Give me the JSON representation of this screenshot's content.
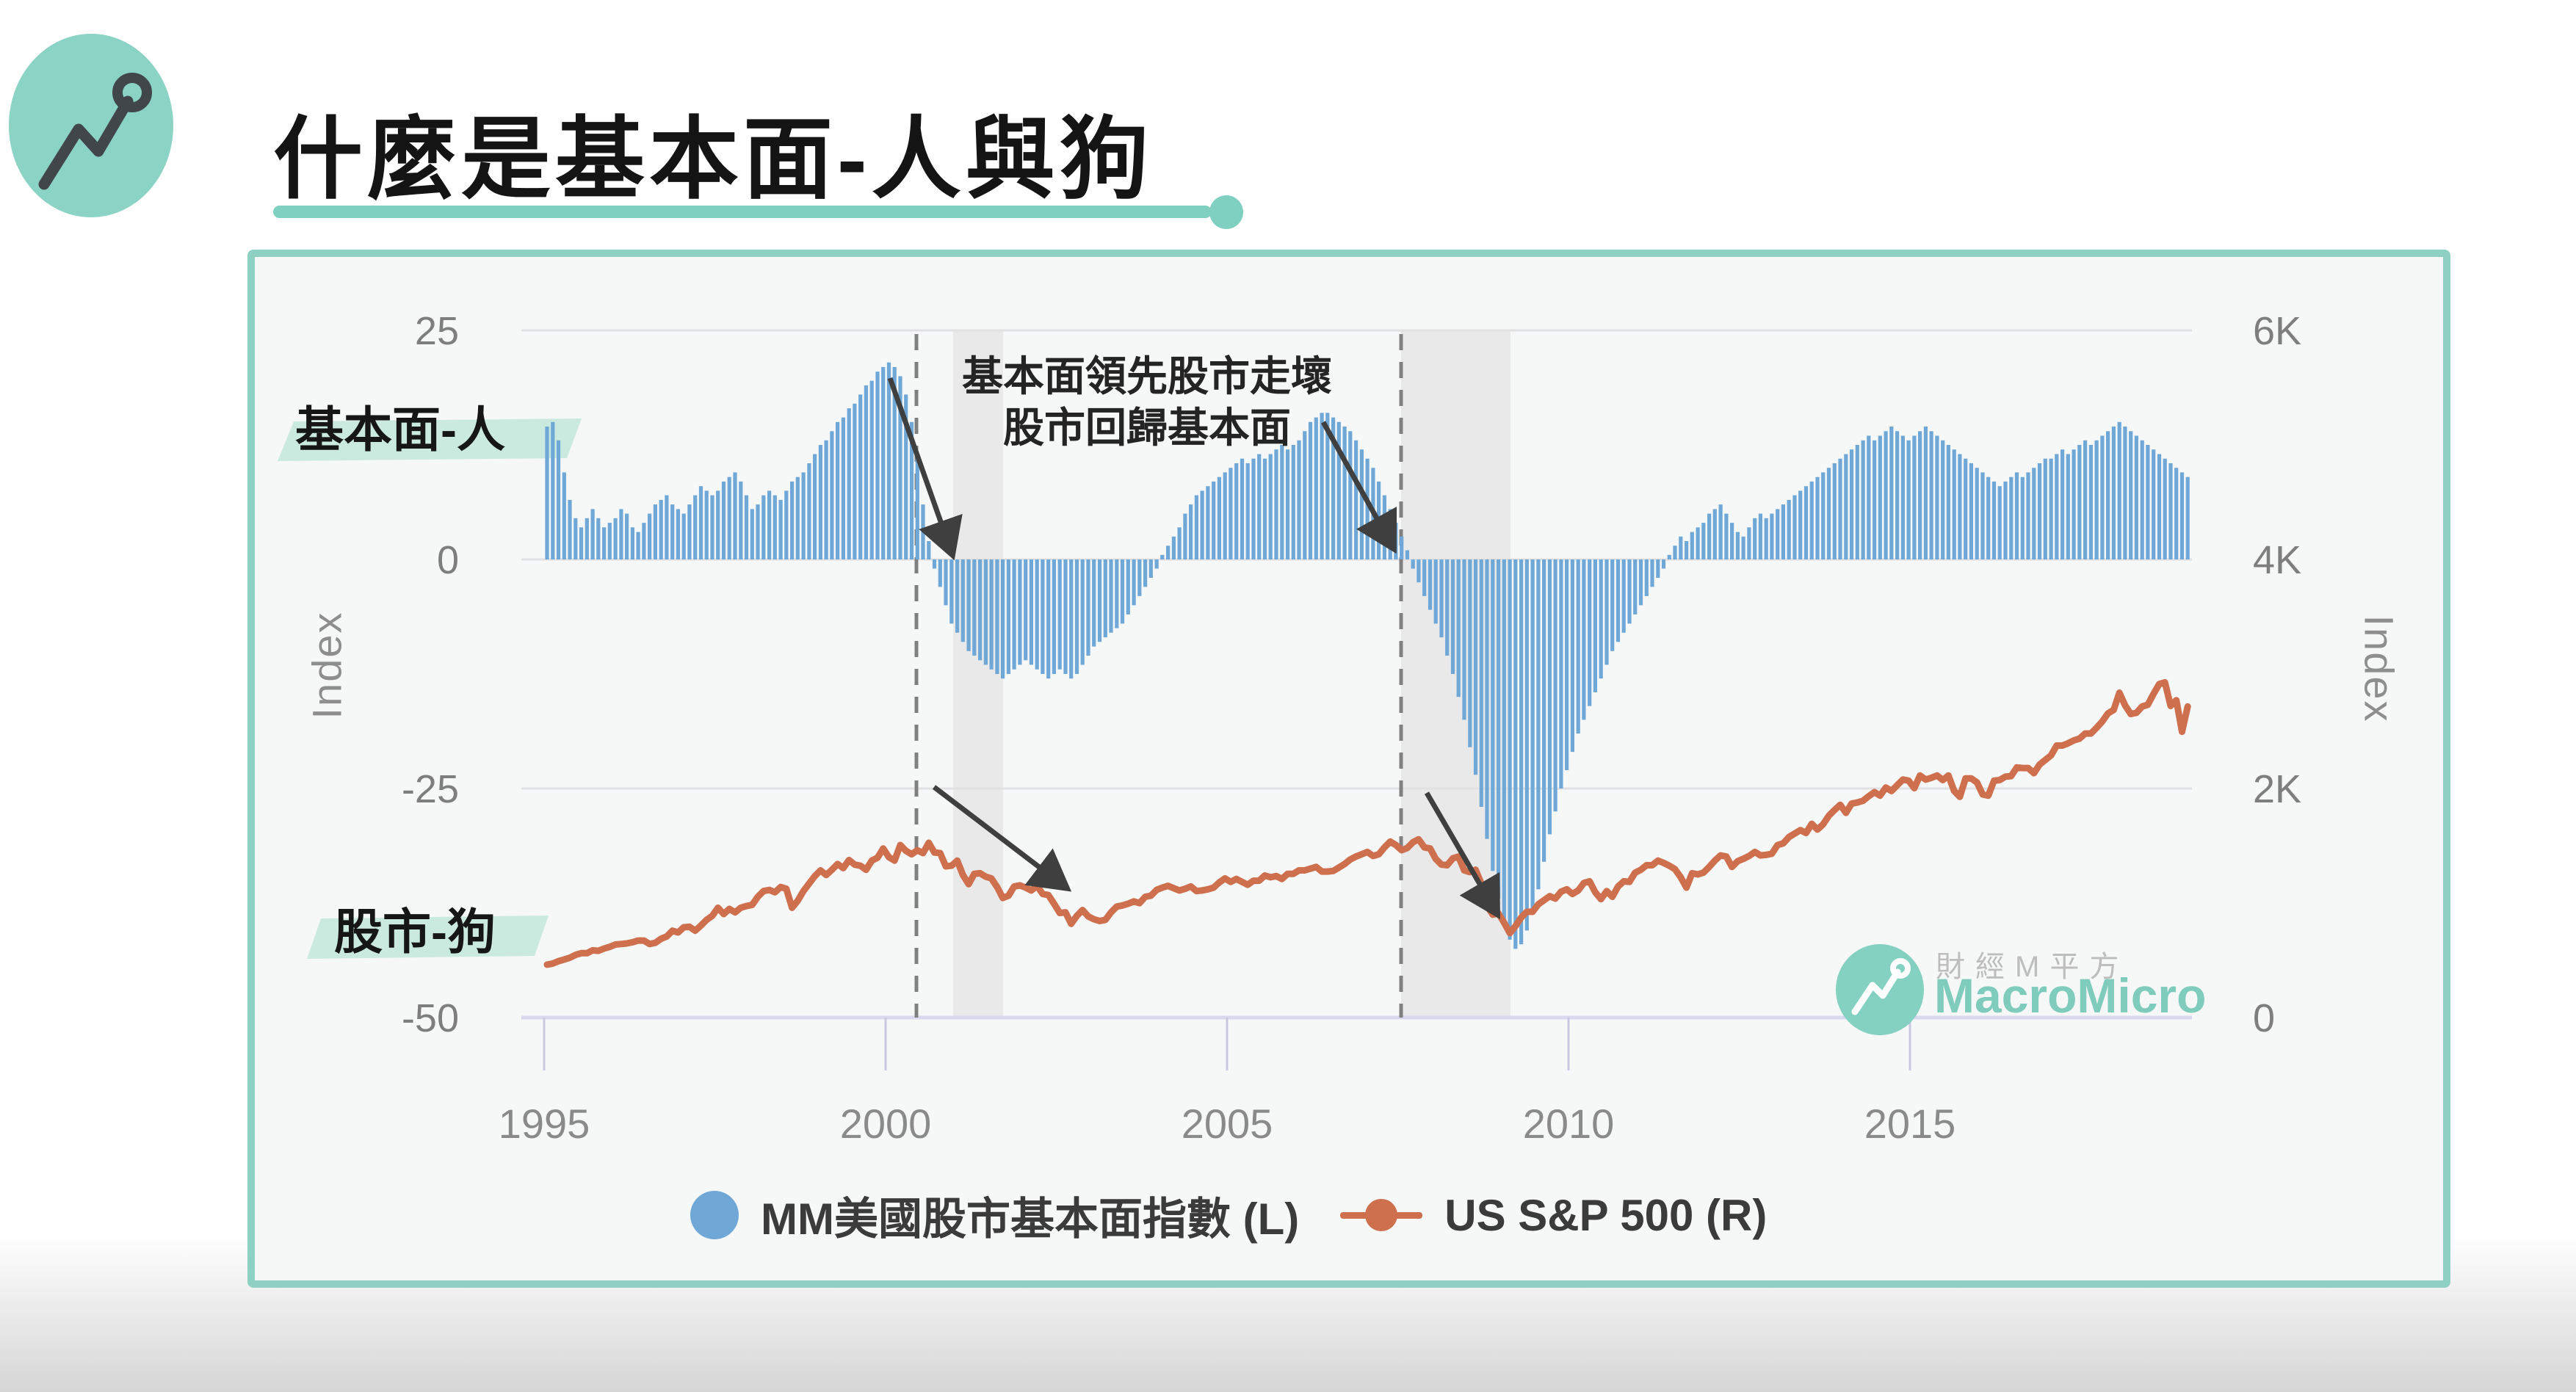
{
  "header": {
    "title": "什麼是基本面-人與狗",
    "brand_color": "#7fd0c0"
  },
  "chart": {
    "left_axis": {
      "label": "Index",
      "ticks": [
        "25",
        "0",
        "-25",
        "-50"
      ]
    },
    "right_axis": {
      "label": "Index",
      "ticks": [
        "6K",
        "4K",
        "2K",
        "0"
      ]
    },
    "x_axis": {
      "ticks": [
        "1995",
        "2000",
        "2005",
        "2010",
        "2015"
      ]
    },
    "annotation": {
      "line1": "基本面領先股市走壞",
      "line2": "股市回歸基本面",
      "human_label": "基本面-人",
      "dog_label": "股市-狗"
    },
    "legend": [
      {
        "label": "MM美國股市基本面指數 (L)",
        "color": "#6FA8D7",
        "marker": "circle"
      },
      {
        "label": "US S&P 500 (R)",
        "color": "#CE6F4D",
        "marker": "line-dot"
      }
    ],
    "watermark": {
      "line1": "財經M平方",
      "line2": "MacroMicro"
    }
  },
  "chart_data": {
    "type": "bar",
    "subtype": "bar+line dual-axis",
    "x_start_year": 1995,
    "x_start_month": 1,
    "frequency": "monthly",
    "xlabels": [
      1995,
      2000,
      2005,
      2010,
      2015
    ],
    "left_axis_gridvalues": [
      25,
      0,
      -25,
      -50
    ],
    "right_axis_gridvalues": [
      6000,
      4000,
      2000,
      0
    ],
    "left_ylim": [
      -50,
      25
    ],
    "right_ylim": [
      0,
      6000
    ],
    "grid": "horizontal-only",
    "legend_position": "bottom-center",
    "dashed_event_lines_x_year": [
      2000.5,
      2007.5
    ],
    "recession_bands_year": [
      [
        2001.0,
        2001.75
      ],
      [
        2007.55,
        2009.15
      ]
    ],
    "series": [
      {
        "name": "MM美國股市基本面指數 (L)",
        "type": "bar",
        "axis": "left",
        "color": "#6FA8D7",
        "values": [
          14.5,
          15,
          13,
          9.5,
          6.5,
          4.5,
          3.5,
          4.5,
          5.5,
          4.5,
          3.5,
          4,
          4.5,
          5.5,
          5,
          3.5,
          3,
          4,
          5,
          6,
          6.5,
          7,
          6,
          5.5,
          5,
          6,
          7,
          8,
          7.5,
          7,
          7.5,
          8.5,
          9,
          9.5,
          8.5,
          7,
          5.5,
          6,
          7,
          7.5,
          7,
          6.5,
          7.5,
          8.5,
          9,
          9.5,
          10.5,
          11.5,
          12.5,
          13,
          14,
          15,
          15.5,
          16.5,
          17,
          18,
          19,
          19.5,
          20.5,
          21,
          21.5,
          21,
          20,
          18,
          15,
          11,
          6,
          2,
          -1,
          -3,
          -5,
          -7,
          -8,
          -9,
          -10,
          -10.5,
          -11,
          -11.5,
          -12,
          -12.5,
          -13,
          -12.5,
          -12,
          -11.5,
          -11,
          -11.5,
          -12,
          -12.5,
          -13,
          -12.5,
          -12,
          -12.5,
          -13,
          -12.5,
          -11.5,
          -10.5,
          -9.5,
          -9,
          -8.5,
          -8,
          -7.5,
          -7,
          -6,
          -5,
          -4,
          -3,
          -2,
          -1,
          0.5,
          1.5,
          2.5,
          3.5,
          5,
          6,
          7,
          7.5,
          8,
          8.5,
          9,
          9.5,
          10,
          10.5,
          11,
          10.5,
          11,
          11.5,
          11,
          11.5,
          12,
          12.5,
          12,
          12.5,
          13,
          14,
          15,
          15.5,
          16,
          16,
          15.5,
          15,
          14.5,
          14,
          13,
          12,
          11,
          10,
          8.5,
          7,
          5.5,
          4,
          2.5,
          1,
          -1,
          -2.5,
          -4,
          -5.5,
          -7,
          -8.5,
          -10.5,
          -12.5,
          -15,
          -17.5,
          -20.5,
          -23.5,
          -27,
          -30.5,
          -34,
          -37,
          -39.5,
          -41.5,
          -42.5,
          -42,
          -40.5,
          -38.5,
          -36,
          -33,
          -30,
          -27.5,
          -25,
          -23,
          -21,
          -19,
          -17.5,
          -16,
          -14.5,
          -13,
          -11.5,
          -10,
          -9,
          -8,
          -7,
          -6,
          -5,
          -4,
          -3,
          -2,
          -1,
          0.5,
          1.5,
          2.5,
          2,
          3,
          3.5,
          4,
          5,
          5.5,
          6,
          5,
          4,
          3,
          2.5,
          3.5,
          4.5,
          5,
          4.5,
          5,
          5.5,
          6,
          6.5,
          7,
          7.5,
          8,
          8.5,
          9,
          9.5,
          10,
          10.5,
          11,
          11.5,
          12,
          12.5,
          13,
          13.5,
          13,
          13.5,
          14,
          14.5,
          14,
          13.5,
          13,
          13.5,
          14,
          14.5,
          14,
          13.5,
          13,
          12.5,
          12,
          11.5,
          11,
          10.5,
          10,
          9.5,
          9,
          8.5,
          8,
          8.5,
          9,
          9.5,
          9,
          9.5,
          10,
          10.5,
          11,
          11,
          11.5,
          12,
          11.5,
          12,
          12.5,
          13,
          12.5,
          13,
          13.5,
          14,
          14.5,
          15,
          14.5,
          14,
          13.5,
          13,
          12.5,
          12,
          11.5,
          11,
          10.5,
          10,
          9.5,
          9
        ]
      },
      {
        "name": "US S&P 500 (R)",
        "type": "line",
        "axis": "right",
        "color": "#CE6F4D",
        "values": [
          460,
          470,
          490,
          505,
          520,
          545,
          560,
          560,
          585,
          580,
          600,
          615,
          635,
          640,
          645,
          655,
          670,
          670,
          640,
          650,
          685,
          705,
          755,
          740,
          785,
          790,
          755,
          800,
          850,
          885,
          955,
          900,
          945,
          915,
          955,
          970,
          980,
          1050,
          1100,
          1110,
          1090,
          1135,
          1120,
          955,
          1015,
          1100,
          1165,
          1230,
          1280,
          1240,
          1285,
          1335,
          1300,
          1370,
          1330,
          1320,
          1285,
          1365,
          1390,
          1470,
          1395,
          1365,
          1500,
          1450,
          1420,
          1455,
          1430,
          1520,
          1435,
          1430,
          1315,
          1320,
          1365,
          1240,
          1160,
          1250,
          1255,
          1225,
          1210,
          1135,
          1040,
          1060,
          1140,
          1150,
          1130,
          1105,
          1145,
          1075,
          1065,
          990,
          910,
          915,
          815,
          885,
          935,
          880,
          855,
          840,
          850,
          915,
          965,
          975,
          990,
          1010,
          995,
          1050,
          1060,
          1110,
          1130,
          1145,
          1125,
          1105,
          1120,
          1140,
          1100,
          1105,
          1115,
          1130,
          1175,
          1210,
          1180,
          1205,
          1180,
          1155,
          1190,
          1190,
          1235,
          1220,
          1230,
          1205,
          1250,
          1250,
          1280,
          1280,
          1295,
          1310,
          1270,
          1270,
          1275,
          1305,
          1335,
          1375,
          1400,
          1420,
          1440,
          1405,
          1420,
          1480,
          1530,
          1500,
          1455,
          1475,
          1525,
          1550,
          1480,
          1470,
          1380,
          1330,
          1325,
          1385,
          1400,
          1280,
          1265,
          1285,
          1165,
          970,
          895,
          905,
          825,
          735,
          795,
          870,
          920,
          920,
          985,
          1020,
          1055,
          1035,
          1095,
          1115,
          1075,
          1105,
          1170,
          1185,
          1090,
          1030,
          1100,
          1050,
          1140,
          1185,
          1180,
          1260,
          1285,
          1325,
          1325,
          1365,
          1345,
          1320,
          1290,
          1220,
          1130,
          1255,
          1245,
          1260,
          1310,
          1365,
          1410,
          1400,
          1310,
          1360,
          1380,
          1405,
          1440,
          1410,
          1415,
          1425,
          1500,
          1515,
          1570,
          1600,
          1630,
          1605,
          1685,
          1635,
          1680,
          1755,
          1805,
          1850,
          1780,
          1860,
          1870,
          1885,
          1925,
          1960,
          1930,
          2000,
          1970,
          2020,
          2070,
          2060,
          1995,
          2105,
          2070,
          2085,
          2105,
          2065,
          2105,
          1970,
          1920,
          2080,
          2080,
          2045,
          1940,
          1930,
          2060,
          2065,
          2095,
          2100,
          2175,
          2170,
          2170,
          2125,
          2200,
          2240,
          2280,
          2365,
          2365,
          2385,
          2410,
          2425,
          2470,
          2470,
          2520,
          2575,
          2645,
          2675,
          2825,
          2715,
          2640,
          2650,
          2705,
          2720,
          2815,
          2900,
          2915,
          2710,
          2760,
          2485,
          2705
        ]
      }
    ]
  }
}
